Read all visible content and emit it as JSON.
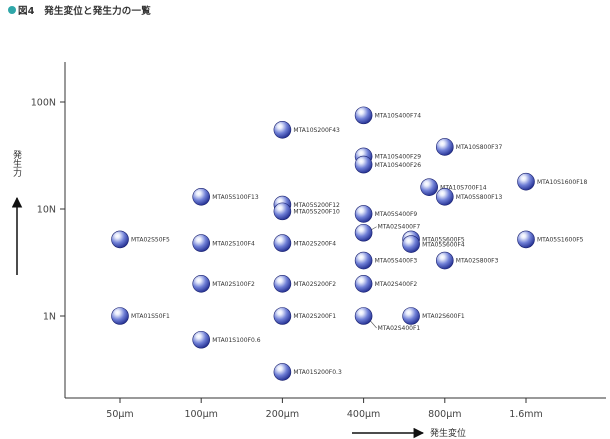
{
  "figure": {
    "title": "図4　発生変位と発生力の一覧"
  },
  "chart_data": {
    "type": "scatter",
    "title": "図4　発生変位と発生力の一覧",
    "xlabel": "発生変位",
    "ylabel": "発生力",
    "x_scale": "log",
    "y_scale": "log",
    "x_ticks": [
      {
        "value": 0.05,
        "label": "50μm"
      },
      {
        "value": 0.1,
        "label": "100μm"
      },
      {
        "value": 0.2,
        "label": "200μm"
      },
      {
        "value": 0.4,
        "label": "400μm"
      },
      {
        "value": 0.8,
        "label": "800μm"
      },
      {
        "value": 1.6,
        "label": "1.6mm"
      }
    ],
    "y_ticks": [
      {
        "value": 1,
        "label": "1N"
      },
      {
        "value": 10,
        "label": "10N"
      },
      {
        "value": 100,
        "label": "100N"
      }
    ],
    "xlim": [
      0.035,
      3.2
    ],
    "ylim": [
      0.2,
      300
    ],
    "grid": false,
    "points": [
      {
        "label": "MTA10S400F74",
        "x": 0.4,
        "y": 75
      },
      {
        "label": "MTA10S200F43",
        "x": 0.2,
        "y": 55
      },
      {
        "label": "MTA10S400F29",
        "x": 0.4,
        "y": 31
      },
      {
        "label": "MTA10S800F37",
        "x": 0.8,
        "y": 38
      },
      {
        "label": "MTA10S400F26",
        "x": 0.4,
        "y": 26
      },
      {
        "label": "MTA10S700F14",
        "x": 0.7,
        "y": 16
      },
      {
        "label": "MTA10S1600F18",
        "x": 1.6,
        "y": 18
      },
      {
        "label": "MTA05S100F13",
        "x": 0.1,
        "y": 13
      },
      {
        "label": "MTA05S800F13",
        "x": 0.8,
        "y": 13
      },
      {
        "label": "MTA05S200F12",
        "x": 0.2,
        "y": 11
      },
      {
        "label": "MTA05S200F10",
        "x": 0.2,
        "y": 9.5
      },
      {
        "label": "MTA05S400F9",
        "x": 0.4,
        "y": 9
      },
      {
        "label": "MTA02S400F7",
        "x": 0.4,
        "y": 6
      },
      {
        "label": "MTA02S50F5",
        "x": 0.05,
        "y": 5.2
      },
      {
        "label": "MTA02S100F4",
        "x": 0.1,
        "y": 4.8
      },
      {
        "label": "MTA02S200F4",
        "x": 0.2,
        "y": 4.8
      },
      {
        "label": "MTA05S600F5",
        "x": 0.6,
        "y": 5.2
      },
      {
        "label": "MTA05S600F4",
        "x": 0.6,
        "y": 4.7
      },
      {
        "label": "MTA05S1600F5",
        "x": 1.6,
        "y": 5.2
      },
      {
        "label": "MTA05S400F3",
        "x": 0.4,
        "y": 3.3
      },
      {
        "label": "MTA02S800F3",
        "x": 0.8,
        "y": 3.3
      },
      {
        "label": "MTA02S100F2",
        "x": 0.1,
        "y": 2
      },
      {
        "label": "MTA02S200F2",
        "x": 0.2,
        "y": 2
      },
      {
        "label": "MTA02S400F2",
        "x": 0.4,
        "y": 2
      },
      {
        "label": "MTA01S50F1",
        "x": 0.05,
        "y": 1
      },
      {
        "label": "MTA02S200F1",
        "x": 0.2,
        "y": 1
      },
      {
        "label": "MTA02S600F1",
        "x": 0.6,
        "y": 1
      },
      {
        "label": "MTA02S400F1",
        "x": 0.4,
        "y": 1
      },
      {
        "label": "MTA01S100F0.6",
        "x": 0.1,
        "y": 0.6
      },
      {
        "label": "MTA01S200F0.3",
        "x": 0.2,
        "y": 0.3
      }
    ]
  },
  "colors": {
    "marker_fill_light": "#e8ecfb",
    "marker_fill_dark": "#1e2a8c",
    "marker_stroke": "#1a2270",
    "title_dot": "#2fa7a9",
    "axis": "#333333"
  },
  "icons": {
    "title_marker": "teal-dot-icon",
    "axis_arrow": "arrow-icon"
  }
}
